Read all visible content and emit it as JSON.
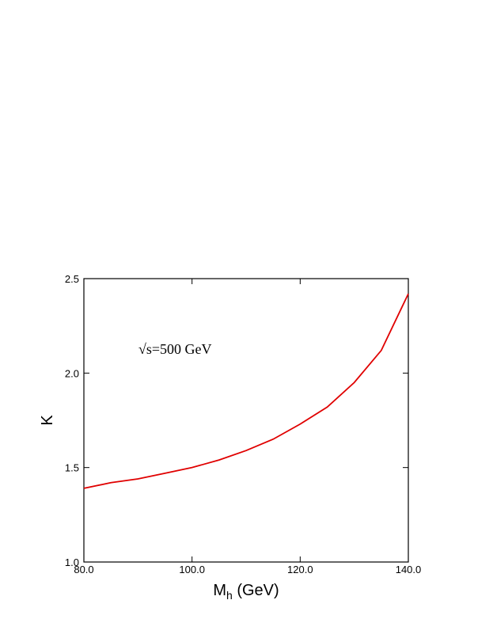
{
  "chart_data": {
    "type": "line",
    "annotation": "√s=500 GeV",
    "x_label": {
      "main": "M",
      "sub": "h",
      "rest": " (GeV)"
    },
    "y_label": "K",
    "x": [
      80,
      85,
      90,
      95,
      100,
      105,
      110,
      115,
      120,
      125,
      130,
      135,
      140
    ],
    "series": [
      {
        "color": "#e00000",
        "values": [
          1.39,
          1.42,
          1.44,
          1.47,
          1.5,
          1.54,
          1.59,
          1.65,
          1.73,
          1.82,
          1.95,
          2.12,
          2.42
        ]
      }
    ],
    "xlim": [
      80,
      140
    ],
    "ylim": [
      1.0,
      2.5
    ],
    "xticks": [
      {
        "value": 80,
        "label": "80.0"
      },
      {
        "value": 100,
        "label": "100.0"
      },
      {
        "value": 120,
        "label": "120.0"
      },
      {
        "value": 140,
        "label": "140.0"
      }
    ],
    "yticks": [
      {
        "value": 1.0,
        "label": "1.0"
      },
      {
        "value": 1.5,
        "label": "1.5"
      },
      {
        "value": 2.0,
        "label": "2.0"
      },
      {
        "value": 2.5,
        "label": "2.5"
      }
    ]
  }
}
